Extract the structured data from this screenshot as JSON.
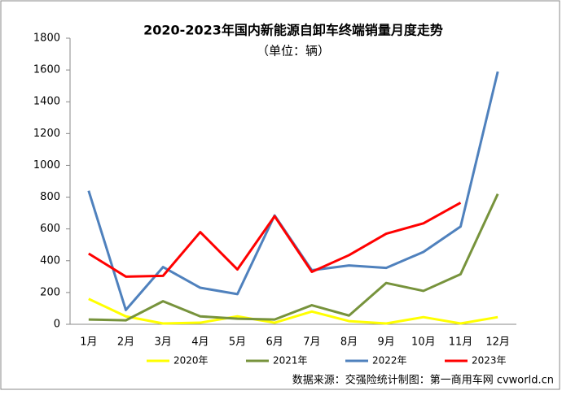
{
  "chart_data": {
    "type": "line",
    "title": "2020-2023年国内新能源自卸车终端销量月度走势",
    "subtitle": "（单位：辆）",
    "source": "数据来源：交强险统计制图：第一商用车网 cvworld.cn",
    "categories": [
      "1月",
      "2月",
      "3月",
      "4月",
      "5月",
      "6月",
      "7月",
      "8月",
      "9月",
      "10月",
      "11月",
      "12月"
    ],
    "series": [
      {
        "name": "2020年",
        "color": "#ffff00",
        "values": [
          160,
          50,
          5,
          10,
          50,
          10,
          80,
          20,
          5,
          45,
          5,
          45
        ]
      },
      {
        "name": "2021年",
        "color": "#77933c",
        "values": [
          30,
          25,
          145,
          50,
          35,
          30,
          120,
          55,
          260,
          210,
          315,
          820
        ]
      },
      {
        "name": "2022年",
        "color": "#4f81bd",
        "values": [
          840,
          90,
          360,
          230,
          190,
          685,
          340,
          370,
          355,
          455,
          615,
          1590
        ]
      },
      {
        "name": "2023年",
        "color": "#ff0000",
        "values": [
          445,
          300,
          305,
          580,
          345,
          680,
          330,
          435,
          570,
          635,
          765,
          null
        ]
      }
    ],
    "ylim": [
      0,
      1800
    ],
    "yticks": [
      0,
      200,
      400,
      600,
      800,
      1000,
      1200,
      1400,
      1600,
      1800
    ]
  }
}
